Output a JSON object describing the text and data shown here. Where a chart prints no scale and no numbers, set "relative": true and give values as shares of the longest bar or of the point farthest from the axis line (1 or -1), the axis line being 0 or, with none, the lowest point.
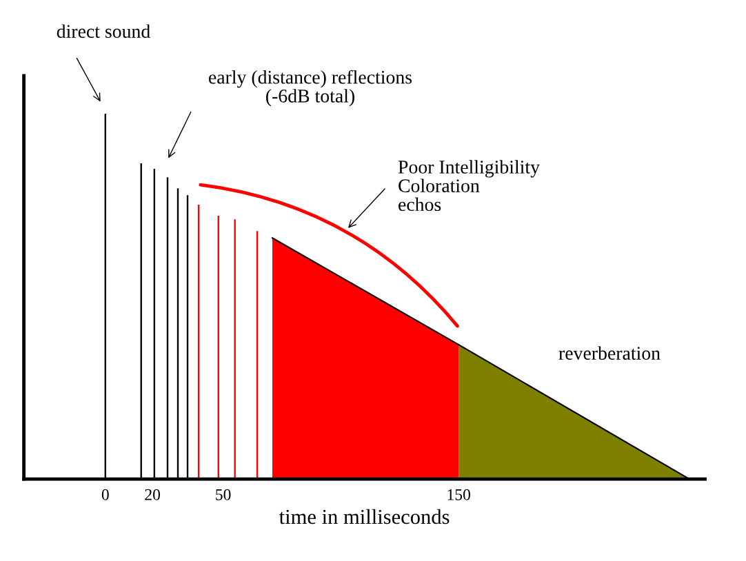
{
  "chart_data": {
    "type": "bar",
    "relative": true,
    "xlabel": "time in milliseconds",
    "xlim": [
      -34.6,
      254.6
    ],
    "xticks": [
      0,
      20,
      50,
      150
    ],
    "series": [
      {
        "x": [
          0,
          15.2,
          20.8,
          26.4,
          30.8,
          34.9,
          39.6,
          48,
          55,
          64.5
        ],
        "values": [
          1,
          0.864,
          0.849,
          0.826,
          0.796,
          0.777,
          0.751,
          0.721,
          0.711,
          0.679
        ],
        "colors": [
          "#000000",
          "#000000",
          "#000000",
          "#000000",
          "#000000",
          "#000000",
          "#ff0000",
          "#ff0000",
          "#ff0000",
          "#ff0000"
        ]
      },
      {
        "type": "area",
        "x": [
          70.9,
          150
        ],
        "values": [
          0.66,
          0.368
        ],
        "color": "#ff0000"
      },
      {
        "type": "area",
        "x": [
          150,
          248
        ],
        "values": [
          0.368,
          0
        ],
        "color": "#808000"
      }
    ],
    "annotations": [
      "direct sound",
      "early (distance) reflections\n(-6dB total)",
      "Poor Intelligibility\nColoration\nechos",
      "reverberation"
    ]
  }
}
